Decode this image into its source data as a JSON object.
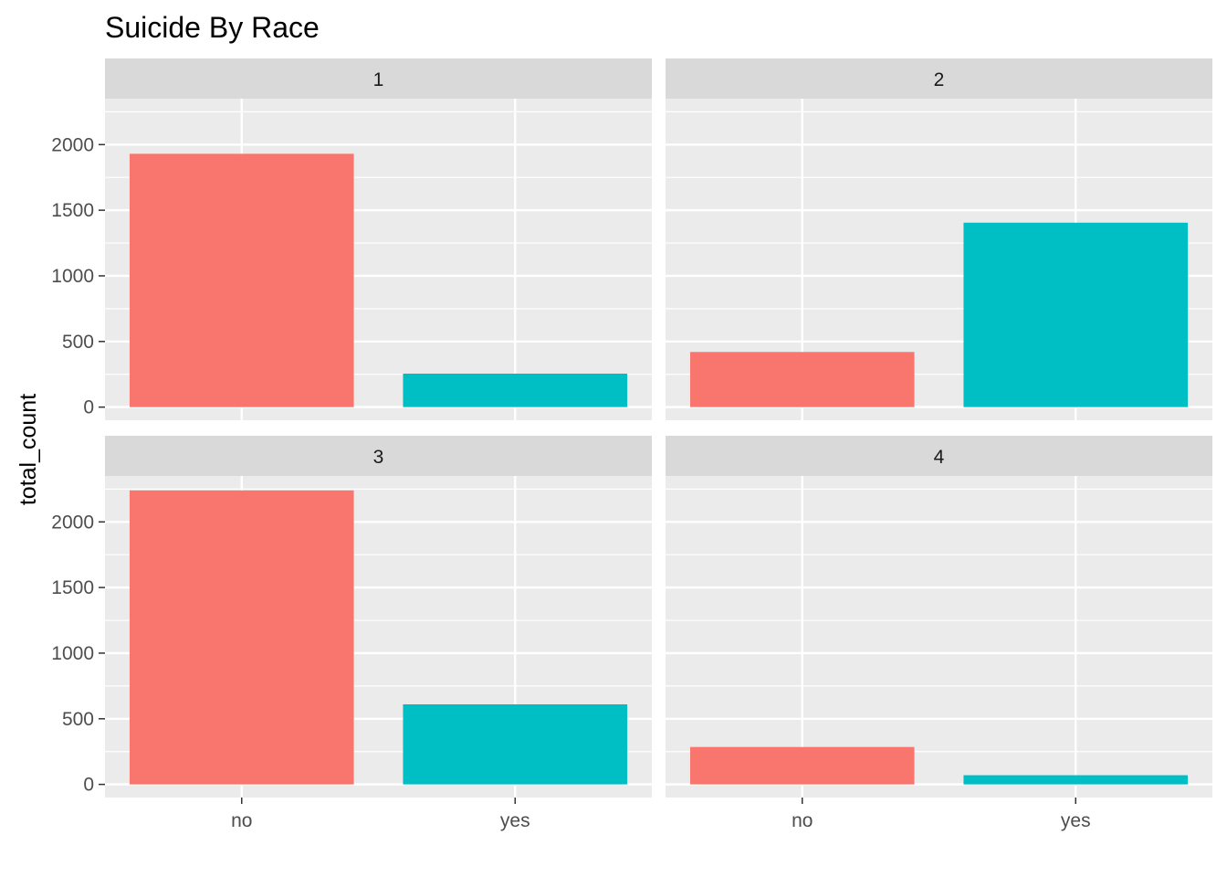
{
  "chart_data": {
    "type": "bar",
    "title": "Suicide By Race",
    "xlabel": "",
    "ylabel": "total_count",
    "categories": [
      "no",
      "yes"
    ],
    "ylim": [
      -100,
      2350
    ],
    "yticks": [
      0,
      500,
      1000,
      1500,
      2000
    ],
    "grid": true,
    "legend": "none",
    "colors": {
      "no": "#F8766D",
      "yes": "#00BFC4"
    },
    "panel_background": "#EBEBEB",
    "strip_background": "#D9D9D9",
    "grid_color": "#FFFFFF",
    "facets": [
      {
        "label": "1",
        "values": [
          1930,
          255
        ]
      },
      {
        "label": "2",
        "values": [
          420,
          1405
        ]
      },
      {
        "label": "3",
        "values": [
          2240,
          610
        ]
      },
      {
        "label": "4",
        "values": [
          285,
          70
        ]
      }
    ]
  }
}
